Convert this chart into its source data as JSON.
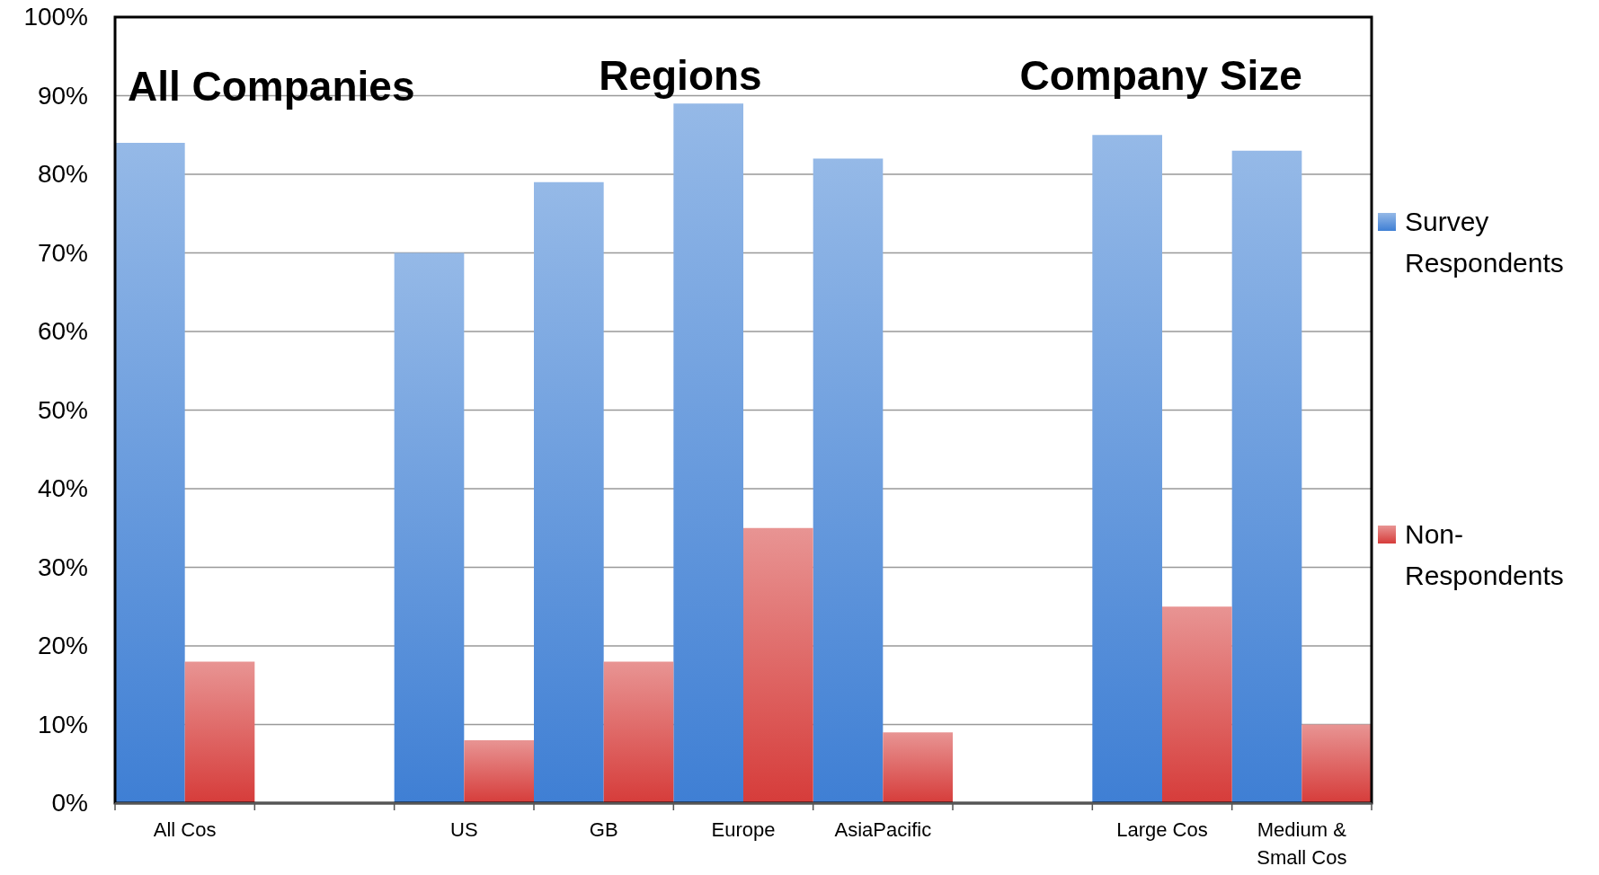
{
  "chart_data": {
    "type": "bar",
    "categories": [
      "All Cos",
      null,
      "US",
      "GB",
      "Europe",
      "AsiaPacific",
      null,
      "Large Cos",
      "Medium & Small Cos"
    ],
    "series": [
      {
        "name": "Survey Respondents",
        "color": "#3f7fd4",
        "values": [
          84,
          null,
          70,
          79,
          89,
          82,
          null,
          85,
          83
        ]
      },
      {
        "name": "Non-Respondents",
        "color": "#d63c3a",
        "values": [
          18,
          null,
          8,
          18,
          35,
          9,
          null,
          25,
          10
        ]
      }
    ],
    "ylim": [
      0,
      100
    ],
    "yticks": [
      {
        "value": 0,
        "label": "0%"
      },
      {
        "value": 10,
        "label": "10%"
      },
      {
        "value": 20,
        "label": "20%"
      },
      {
        "value": 30,
        "label": "30%"
      },
      {
        "value": 40,
        "label": "40%"
      },
      {
        "value": 50,
        "label": "50%"
      },
      {
        "value": 60,
        "label": "60%"
      },
      {
        "value": 70,
        "label": "70%"
      },
      {
        "value": 80,
        "label": "80%"
      },
      {
        "value": 90,
        "label": "90%"
      },
      {
        "value": 100,
        "label": "100%"
      }
    ],
    "grid": "y",
    "legend": "right",
    "annotations": [
      "All Companies",
      "Regions",
      "Company Size"
    ]
  }
}
